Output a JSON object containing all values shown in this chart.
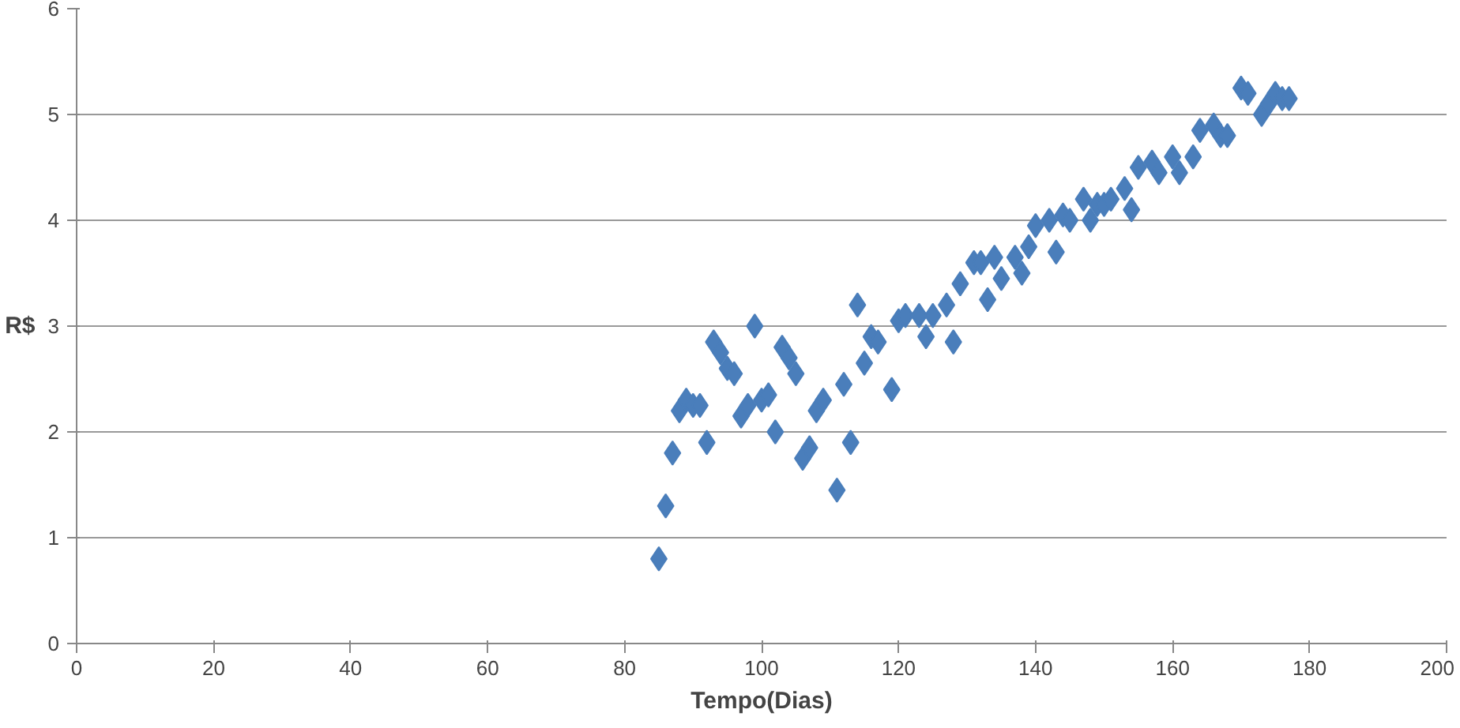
{
  "chart_data": {
    "type": "scatter",
    "xlabel": "Tempo(Dias)",
    "ylabel": "R$",
    "x": [
      85,
      86,
      87,
      88,
      89,
      90,
      91,
      92,
      93,
      94,
      95,
      96,
      97,
      98,
      99,
      100,
      101,
      102,
      103,
      104,
      105,
      106,
      107,
      108,
      109,
      111,
      112,
      113,
      114,
      115,
      116,
      117,
      119,
      120,
      121,
      123,
      124,
      125,
      127,
      128,
      129,
      131,
      132,
      133,
      134,
      135,
      137,
      138,
      139,
      140,
      142,
      143,
      144,
      145,
      147,
      148,
      149,
      150,
      151,
      153,
      154,
      155,
      157,
      158,
      160,
      161,
      163,
      164,
      166,
      167,
      168,
      170,
      171,
      173,
      174,
      175,
      176,
      177
    ],
    "series": [
      {
        "color": "#4a7ebb",
        "values": [
          0.8,
          1.3,
          1.8,
          2.2,
          2.3,
          2.25,
          2.25,
          1.9,
          2.85,
          2.75,
          2.6,
          2.55,
          2.15,
          2.25,
          3.0,
          2.3,
          2.35,
          2.0,
          2.8,
          2.7,
          2.55,
          1.75,
          1.85,
          2.2,
          2.3,
          1.45,
          2.45,
          1.9,
          3.2,
          2.65,
          2.9,
          2.85,
          2.4,
          3.05,
          3.1,
          3.1,
          2.9,
          3.1,
          3.2,
          2.85,
          3.4,
          3.6,
          3.6,
          3.25,
          3.65,
          3.45,
          3.65,
          3.5,
          3.75,
          3.95,
          4.0,
          3.7,
          4.05,
          4.0,
          4.2,
          4.0,
          4.15,
          4.15,
          4.2,
          4.3,
          4.1,
          4.5,
          4.55,
          4.45,
          4.6,
          4.45,
          4.6,
          4.85,
          4.9,
          4.8,
          4.8,
          5.25,
          5.2,
          5.0,
          5.1,
          5.2,
          5.15,
          5.15
        ]
      }
    ],
    "xlim": [
      0,
      200
    ],
    "xticks": [
      0,
      20,
      40,
      60,
      80,
      100,
      120,
      140,
      160,
      180,
      200
    ],
    "ylim": [
      0,
      6
    ],
    "yticks": [
      0,
      1,
      2,
      3,
      4,
      5,
      6
    ],
    "grid": "y",
    "marker": "diamond"
  }
}
